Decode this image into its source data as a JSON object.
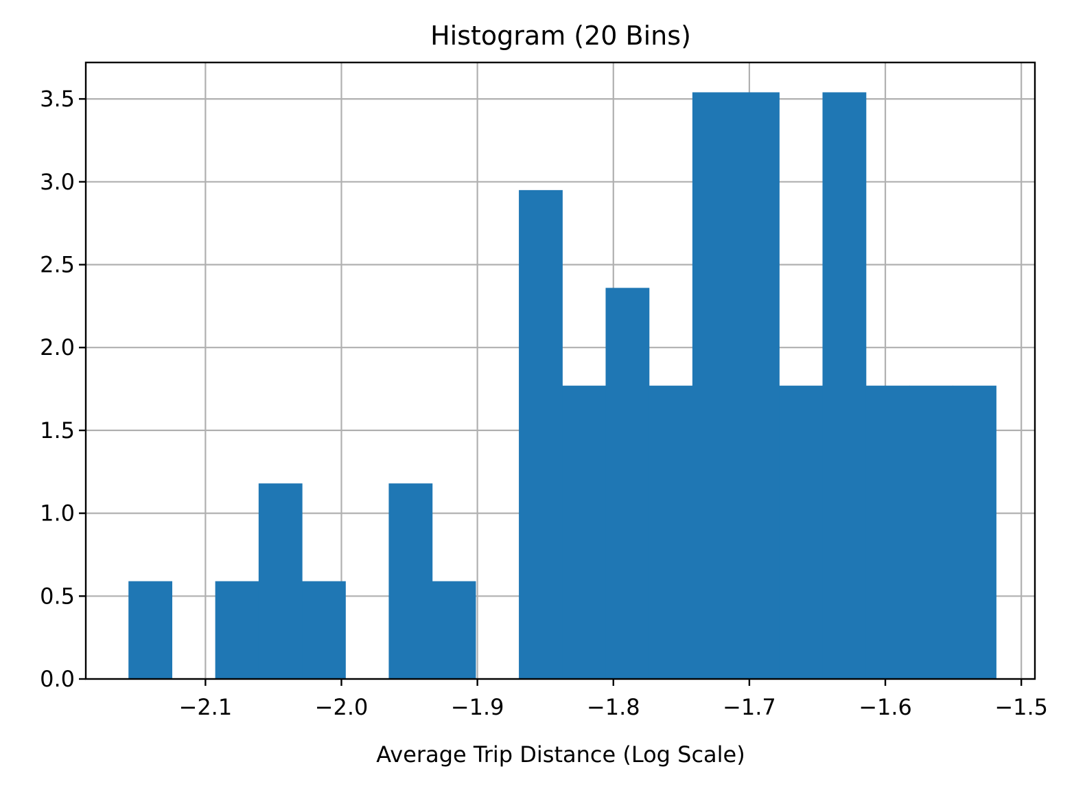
{
  "chart_data": {
    "type": "bar",
    "title": "Histogram (20 Bins)",
    "xlabel": "Average Trip Distance (Log Scale)",
    "ylabel": "",
    "bar_color": "#1f77b4",
    "grid": true,
    "xlim": [
      -2.188,
      -1.49
    ],
    "ylim": [
      0,
      3.72
    ],
    "xticks": [
      -2.1,
      -2.0,
      -1.9,
      -1.8,
      -1.7,
      -1.6,
      -1.5
    ],
    "xtick_labels": [
      "−2.1",
      "−2.0",
      "−1.9",
      "−1.8",
      "−1.7",
      "−1.6",
      "−1.5"
    ],
    "yticks": [
      0.0,
      0.5,
      1.0,
      1.5,
      2.0,
      2.5,
      3.0,
      3.5
    ],
    "ytick_labels": [
      "0.0",
      "0.5",
      "1.0",
      "1.5",
      "2.0",
      "2.5",
      "3.0",
      "3.5"
    ],
    "bin_edges": [
      -2.1566,
      -2.1247,
      -2.0928,
      -2.0609,
      -2.029,
      -1.9971,
      -1.9652,
      -1.9333,
      -1.9014,
      -1.8695,
      -1.8376,
      -1.8057,
      -1.7738,
      -1.7419,
      -1.71,
      -1.6781,
      -1.6462,
      -1.6143,
      -1.5824,
      -1.5505,
      -1.5186
    ],
    "values": [
      0.59,
      0,
      0.59,
      1.18,
      0.59,
      0,
      1.18,
      0.59,
      0,
      2.95,
      1.77,
      2.36,
      1.77,
      3.54,
      3.54,
      1.77,
      3.54,
      1.77,
      1.77,
      1.77
    ]
  }
}
